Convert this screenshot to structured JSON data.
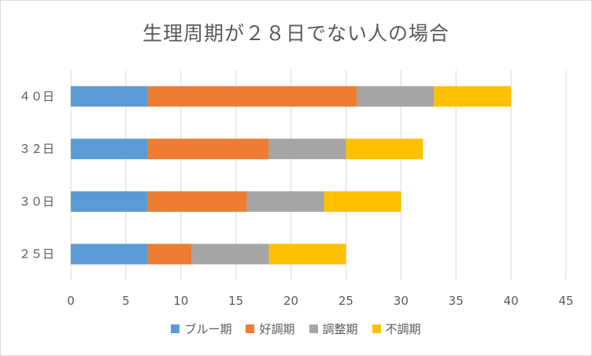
{
  "chart_data": {
    "type": "bar",
    "orientation": "horizontal",
    "stacked": true,
    "title": "生理周期が２８日でない人の場合",
    "categories": [
      "２５日",
      "３０日",
      "３２日",
      "４０日"
    ],
    "series": [
      {
        "name": "ブルー期",
        "color": "#5b9bd5",
        "values": [
          7,
          7,
          7,
          7
        ]
      },
      {
        "name": "好調期",
        "color": "#ed7d31",
        "values": [
          4,
          9,
          11,
          19
        ]
      },
      {
        "name": "調整期",
        "color": "#a5a5a5",
        "values": [
          7,
          7,
          7,
          7
        ]
      },
      {
        "name": "不調期",
        "color": "#ffc000",
        "values": [
          7,
          7,
          7,
          7
        ]
      }
    ],
    "xlim": [
      0,
      45
    ],
    "xticks": [
      "0",
      "5",
      "10",
      "15",
      "20",
      "25",
      "30",
      "35",
      "40",
      "45"
    ],
    "grid": true,
    "legend_position": "bottom"
  }
}
